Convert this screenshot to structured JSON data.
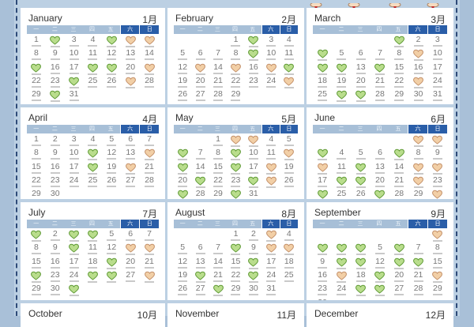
{
  "weekdays": [
    "一",
    "二",
    "三",
    "四",
    "五",
    "六",
    "日"
  ],
  "colors": {
    "weekday_bar": "#a7bfd7",
    "weekend_bar": "#2a5ea8",
    "good_heart": "#b9dd8c",
    "other_heart": "#f2cfa6",
    "frame": "#2d4a78"
  },
  "months": [
    {
      "name": "January",
      "cn": "1月",
      "start_weekday": 1,
      "days": 31,
      "green": [
        2,
        5,
        15,
        18,
        19,
        24,
        30
      ],
      "tan": [
        6,
        7,
        21,
        27
      ]
    },
    {
      "name": "February",
      "cn": "2月",
      "start_weekday": 4,
      "days": 29,
      "green": [
        2,
        9,
        18
      ],
      "tan": [
        13,
        15,
        17,
        25
      ]
    },
    {
      "name": "March",
      "cn": "3月",
      "start_weekday": 5,
      "days": 31,
      "green": [
        1,
        4,
        11,
        12,
        14,
        26,
        27
      ],
      "tan": [
        9,
        23
      ]
    },
    {
      "name": "April",
      "cn": "4月",
      "start_weekday": 1,
      "days": 30,
      "green": [
        11,
        18
      ],
      "tan": [
        14,
        20
      ]
    },
    {
      "name": "May",
      "cn": "5月",
      "start_weekday": 3,
      "days": 31,
      "green": [
        6,
        9,
        13,
        16,
        21,
        24,
        27,
        30
      ],
      "tan": [
        2,
        3,
        12,
        18,
        25
      ]
    },
    {
      "name": "June",
      "cn": "6月",
      "start_weekday": 6,
      "days": 30,
      "green": [
        3,
        7,
        12,
        18,
        19,
        24,
        27
      ],
      "tan": [
        1,
        2,
        10,
        15,
        16,
        22,
        30
      ]
    },
    {
      "name": "July",
      "cn": "7月",
      "start_weekday": 1,
      "days": 31,
      "green": [
        1,
        3,
        4,
        10,
        19,
        22,
        25,
        26,
        31
      ],
      "tan": [
        13,
        14,
        28
      ]
    },
    {
      "name": "August",
      "cn": "8月",
      "start_weekday": 4,
      "days": 31,
      "green": [
        8,
        16,
        20,
        23,
        28
      ],
      "tan": [
        3,
        10,
        11
      ]
    },
    {
      "name": "September",
      "cn": "9月",
      "start_weekday": 7,
      "days": 30,
      "green": [
        2,
        3,
        4,
        6,
        10,
        11,
        13,
        14,
        19,
        25,
        26
      ],
      "tan": [
        1,
        17,
        22
      ]
    },
    {
      "name": "October",
      "cn": "10月"
    },
    {
      "name": "November",
      "cn": "11月"
    },
    {
      "name": "December",
      "cn": "12月"
    }
  ]
}
